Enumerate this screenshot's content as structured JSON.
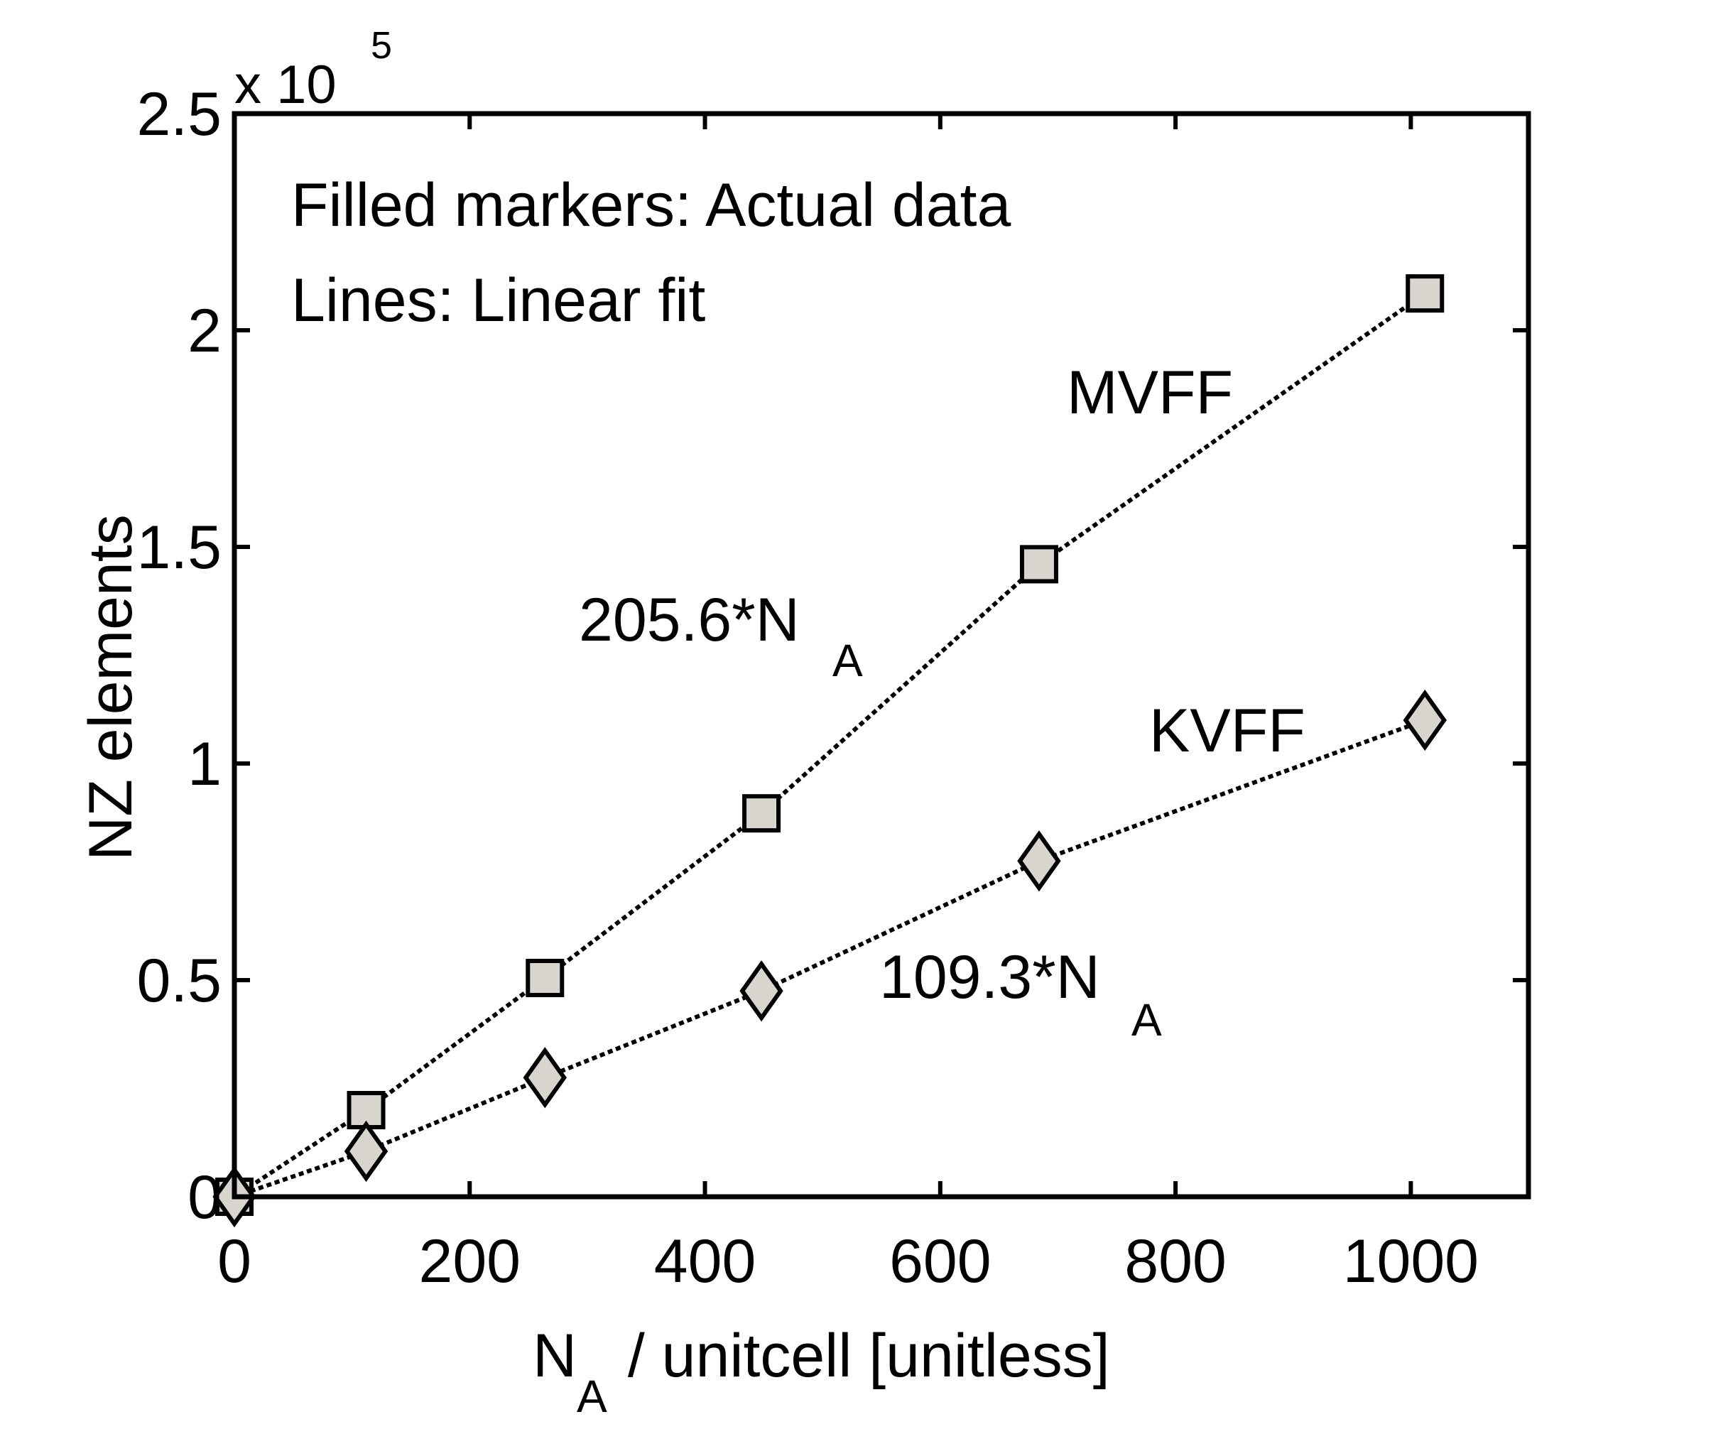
{
  "chart_data": {
    "type": "scatter",
    "title": "",
    "xlabel_main": "N",
    "xlabel_sub": "A",
    "xlabel_rest": " / unitcell [unitless]",
    "ylabel": "NZ elements",
    "exponent_prefix": "x 10",
    "exponent_power": "5",
    "xlim": [
      0,
      1100
    ],
    "ylim": [
      0,
      250000
    ],
    "xticks": [
      0,
      200,
      400,
      600,
      800,
      1000
    ],
    "xtick_labels": [
      "0",
      "200",
      "400",
      "600",
      "800",
      "1000"
    ],
    "yticks": [
      0,
      50000,
      100000,
      150000,
      200000,
      250000
    ],
    "ytick_labels": [
      "0",
      "0.5",
      "1",
      "1.5",
      "2",
      "2.5"
    ],
    "grid": false,
    "annotations": {
      "note_line1": "Filled markers: Actual data",
      "note_line2": "Lines: Linear fit",
      "mvff_label": "MVFF",
      "kvff_label": "KVFF",
      "mvff_fit_main": "205.6*N",
      "mvff_fit_sub": "A",
      "kvff_fit_main": "109.3*N",
      "kvff_fit_sub": "A"
    },
    "series": [
      {
        "name": "MVFF",
        "marker": "square",
        "fit_slope": 205.6,
        "x": [
          0,
          112,
          264,
          448,
          684,
          1012
        ],
        "y": [
          0,
          20000,
          50500,
          88500,
          146000,
          208500
        ]
      },
      {
        "name": "KVFF",
        "marker": "diamond",
        "fit_slope": 109.3,
        "x": [
          0,
          112,
          264,
          448,
          684,
          1012
        ],
        "y": [
          0,
          10500,
          27500,
          47500,
          77500,
          110000
        ]
      }
    ],
    "colors": {
      "marker_fill": "#d8d5cf",
      "stroke": "#000000"
    }
  }
}
